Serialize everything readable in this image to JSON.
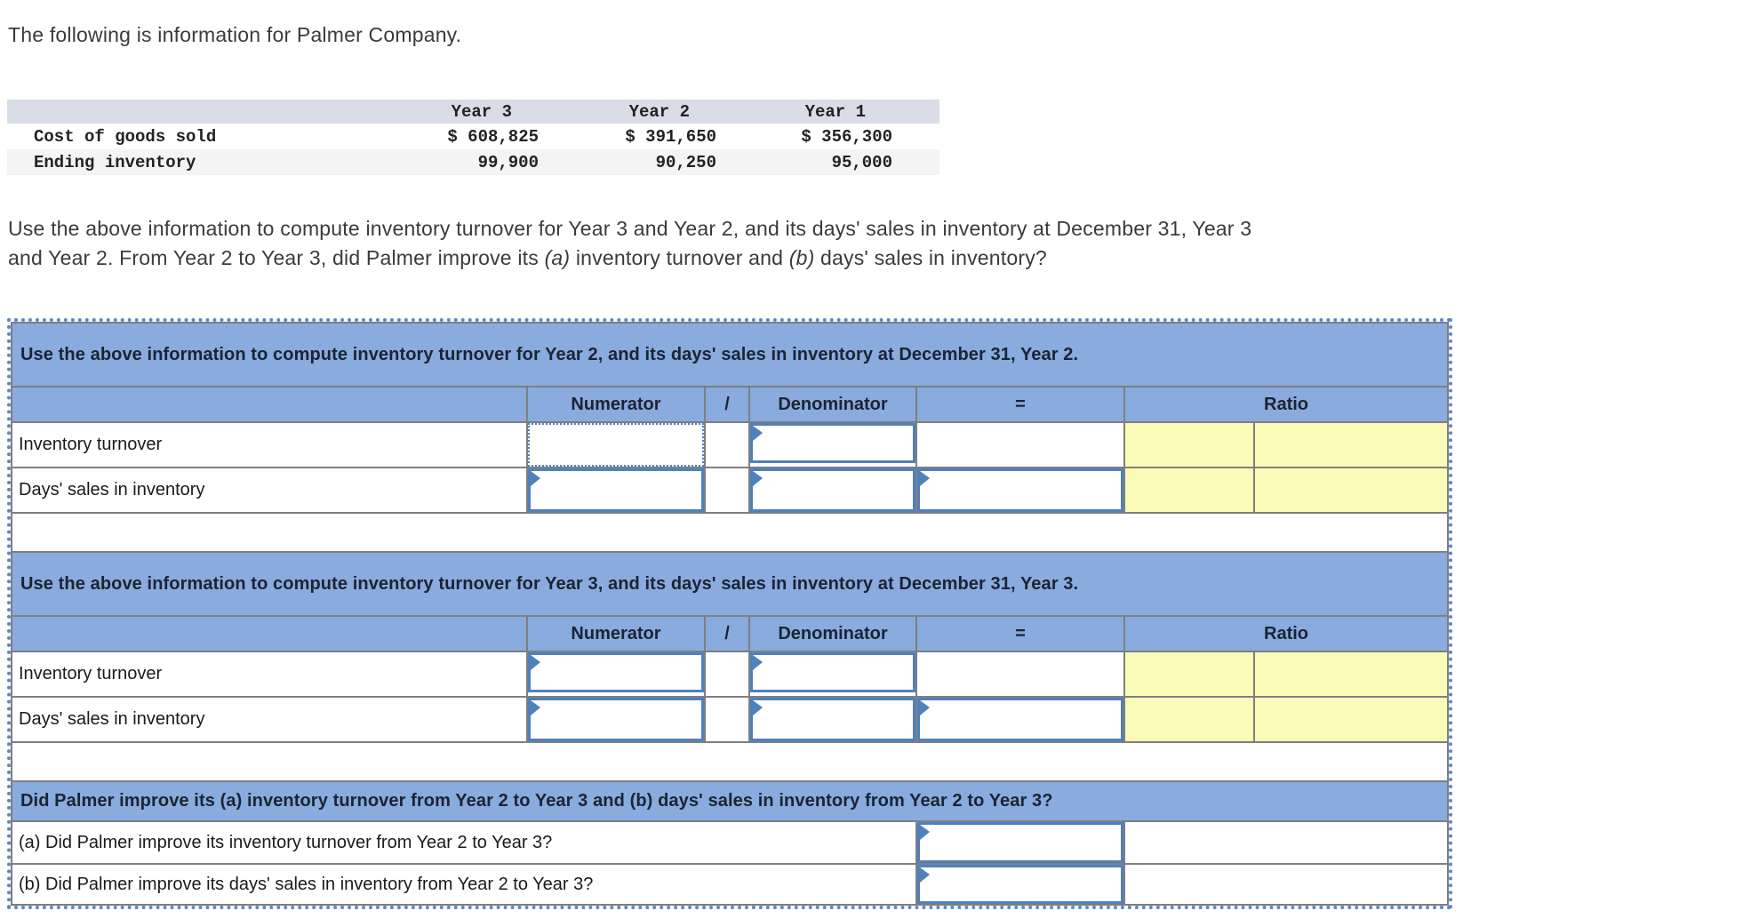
{
  "intro": {
    "title": "The following is information for Palmer Company."
  },
  "data_table": {
    "year_headers": [
      "Year 3",
      "Year 2",
      "Year 1"
    ],
    "rows": [
      {
        "label": "Cost of goods sold",
        "values": [
          "$ 608,825",
          "$ 391,650",
          "$ 356,300"
        ]
      },
      {
        "label": "Ending inventory",
        "values": [
          "99,900",
          "90,250",
          "95,000"
        ]
      }
    ]
  },
  "question": {
    "line1": "Use the above information to compute inventory turnover for Year 3 and Year 2, and its days' sales in inventory at December 31, Year 3",
    "line2_seg1": "and Year 2. From Year 2 to Year 3, did Palmer improve its ",
    "line2_a": "(a)",
    "line2_seg2": " inventory turnover and ",
    "line2_b": "(b)",
    "line2_seg3": " days' sales in inventory?"
  },
  "worksheet": {
    "column_headers": {
      "numerator": "Numerator",
      "slash": "/",
      "denominator": "Denominator",
      "equals": "=",
      "ratio": "Ratio"
    },
    "section_year2": {
      "title": "Use the above information to compute inventory turnover for Year 2, and its days' sales in inventory at December 31, Year 2.",
      "rows": [
        {
          "label": "Inventory turnover",
          "numerator": "",
          "denominator": ""
        },
        {
          "label": "Days' sales in inventory",
          "numerator": "",
          "denominator": "",
          "equals": ""
        }
      ]
    },
    "section_year3": {
      "title": "Use the above information to compute inventory turnover for Year 3, and its days' sales in inventory at December 31, Year 3.",
      "rows": [
        {
          "label": "Inventory turnover",
          "numerator": "",
          "denominator": ""
        },
        {
          "label": "Days' sales in inventory",
          "numerator": "",
          "denominator": "",
          "equals": ""
        }
      ]
    },
    "section_improve": {
      "title": "Did Palmer improve its (a) inventory turnover from Year 2 to Year 3 and (b) days' sales in inventory from Year 2 to Year 3?",
      "rows": [
        {
          "label": "(a) Did Palmer improve its inventory turnover from Year 2 to Year 3?",
          "answer": ""
        },
        {
          "label": "(b) Did Palmer improve its days' sales in inventory from Year 2 to Year 3?",
          "answer": ""
        }
      ]
    }
  },
  "colors": {
    "header_blue": "#89abdd",
    "input_border_blue": "#4f81bd",
    "result_yellow": "#fbfbb8",
    "grid_gray": "#7f7f7f",
    "marquee_dotted_blue": "#5b87c9",
    "table_header_bg": "#d9dde7",
    "table_stripe_bg": "#f4f4f4"
  }
}
